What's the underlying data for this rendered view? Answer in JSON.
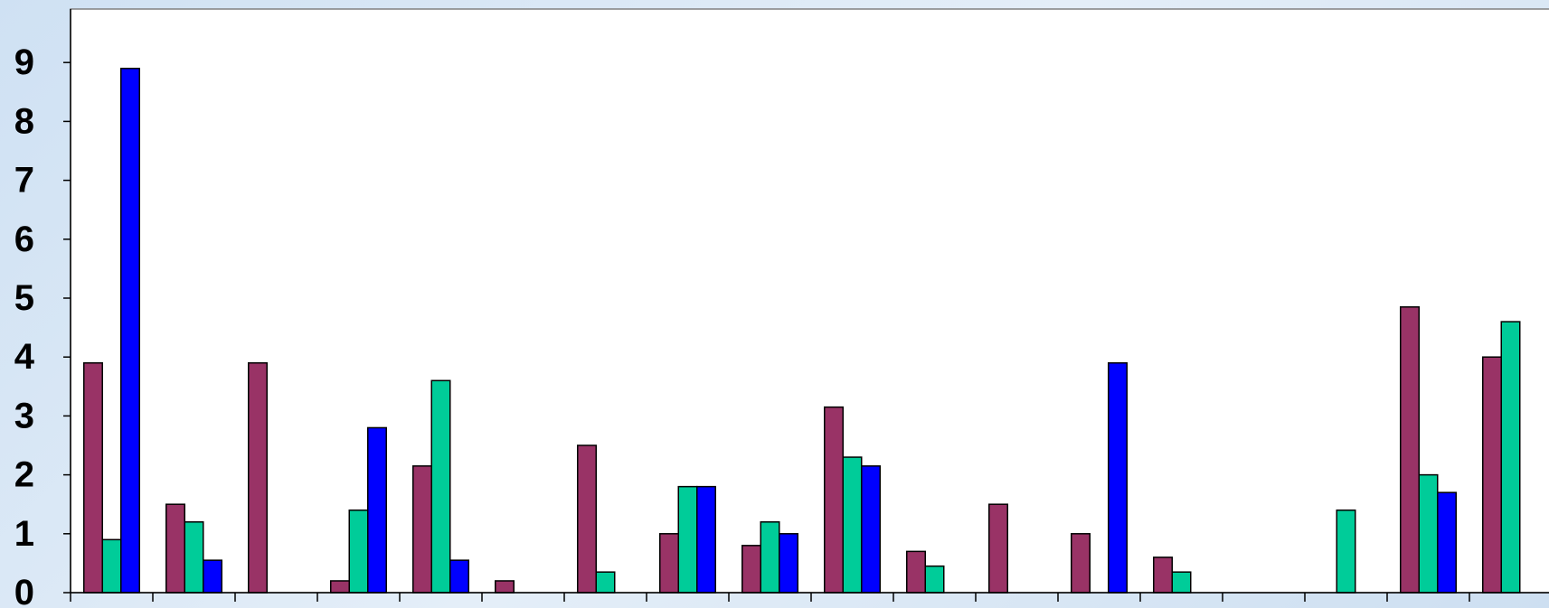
{
  "chart_data": {
    "type": "bar",
    "title": "",
    "xlabel": "",
    "ylabel": "",
    "ylim": [
      0,
      10
    ],
    "yticks": [
      0,
      1,
      2,
      3,
      4,
      5,
      6,
      7,
      8,
      9
    ],
    "grid": false,
    "legend": "none",
    "category_count": 18,
    "series": [
      {
        "color": "#993366",
        "values": [
          3.9,
          1.5,
          3.9,
          0.2,
          2.15,
          0.2,
          2.5,
          1.0,
          0.8,
          3.15,
          0.7,
          1.5,
          1.0,
          0.6,
          0,
          0,
          4.85,
          4.0
        ]
      },
      {
        "color": "#00cc99",
        "values": [
          0.9,
          1.2,
          0,
          1.4,
          3.6,
          0,
          0.35,
          1.8,
          1.2,
          2.3,
          0.45,
          0,
          0,
          0.35,
          0,
          1.4,
          2.0,
          4.6
        ]
      },
      {
        "color": "#0000ff",
        "values": [
          8.9,
          0.55,
          0,
          2.8,
          0.55,
          0,
          0,
          1.8,
          1.0,
          2.15,
          0,
          0,
          3.9,
          0,
          0,
          0,
          1.7,
          0
        ]
      }
    ]
  }
}
